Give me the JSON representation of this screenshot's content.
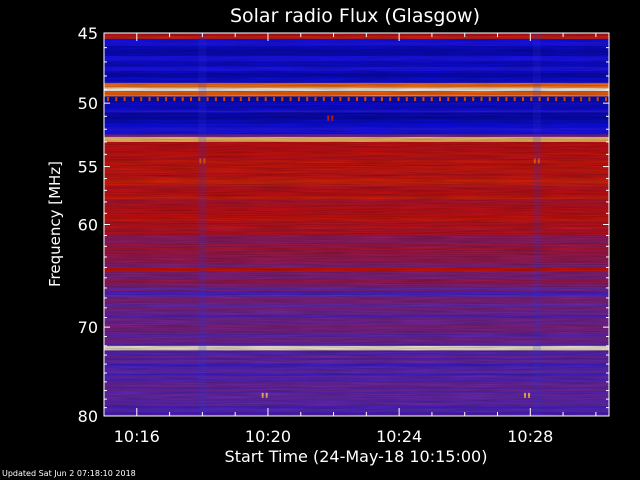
{
  "chart_data": {
    "type": "heatmap",
    "title": "Solar radio Flux (Glasgow)",
    "xlabel": "Start Time (24-May-18 10:15:00)",
    "ylabel": "Frequency [MHz]",
    "x_unit": "time",
    "x_range": [
      "10:15:00",
      "10:30:00"
    ],
    "xticks": [
      "10:16",
      "10:20",
      "10:24",
      "10:28"
    ],
    "xtick_values_min": [
      16,
      20,
      24,
      28
    ],
    "ylim": [
      45,
      80
    ],
    "y_inverted": true,
    "yticks": [
      45,
      50,
      55,
      60,
      70,
      80
    ],
    "y_scale": "log",
    "colormap": [
      "#00006a",
      "#1010ff",
      "#6a2bb5",
      "#a01a55",
      "#d01010",
      "#ff5a00",
      "#ffc060",
      "#ffffff"
    ],
    "background_bands": [
      {
        "f0": 45.0,
        "f1": 45.4,
        "level": 0.55
      },
      {
        "f0": 45.4,
        "f1": 48.5,
        "level": 0.12
      },
      {
        "f0": 48.5,
        "f1": 48.9,
        "level": 0.78
      },
      {
        "f0": 48.9,
        "f1": 49.1,
        "level": 1.0
      },
      {
        "f0": 49.1,
        "f1": 49.5,
        "level": 0.75
      },
      {
        "f0": 49.5,
        "f1": 52.4,
        "level": 0.13
      },
      {
        "f0": 52.4,
        "f1": 52.6,
        "level": 0.35
      },
      {
        "f0": 52.6,
        "f1": 53.0,
        "level": 0.88
      },
      {
        "f0": 53.0,
        "f1": 53.6,
        "level": 0.55
      },
      {
        "f0": 53.6,
        "f1": 61.0,
        "level": 0.55
      },
      {
        "f0": 61.0,
        "f1": 64.0,
        "level": 0.42
      },
      {
        "f0": 64.0,
        "f1": 64.4,
        "level": 0.58
      },
      {
        "f0": 64.4,
        "f1": 66.0,
        "level": 0.38
      },
      {
        "f0": 66.0,
        "f1": 72.0,
        "level": 0.3
      },
      {
        "f0": 72.0,
        "f1": 72.5,
        "level": 0.93
      },
      {
        "f0": 72.5,
        "f1": 80.0,
        "level": 0.27
      }
    ],
    "bursts": [
      {
        "t_min": 18.0,
        "f": 54.5,
        "level": 0.72
      },
      {
        "t_min": 28.2,
        "f": 54.5,
        "level": 0.72
      },
      {
        "t_min": 21.9,
        "f": 51.1,
        "level": 0.6
      },
      {
        "t_min": 19.9,
        "f": 77.5,
        "level": 0.85
      },
      {
        "t_min": 27.9,
        "f": 77.5,
        "level": 0.85
      }
    ]
  },
  "footer": {
    "updated": "Updated Sat Jun  2 07:18:10 2018"
  }
}
